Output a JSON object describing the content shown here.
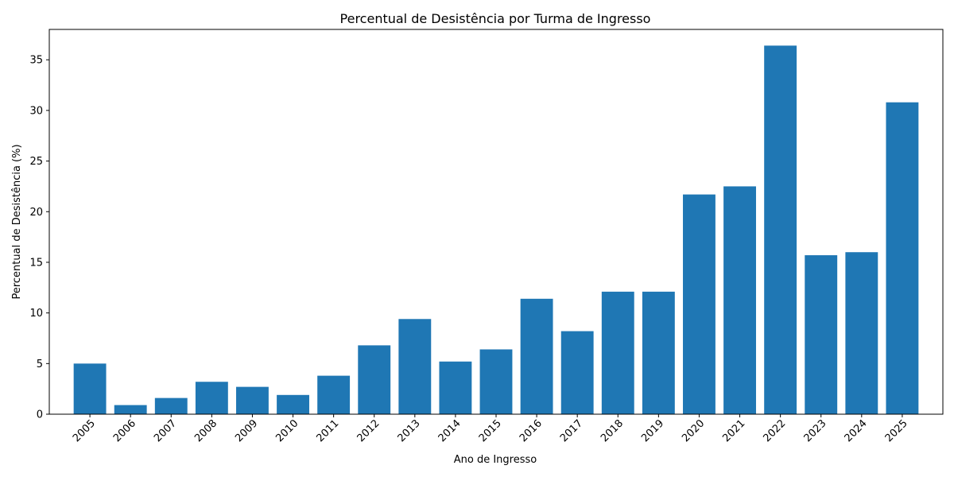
{
  "chart_data": {
    "type": "bar",
    "title": "Percentual de Desistência por Turma de Ingresso",
    "xlabel": "Ano de Ingresso",
    "ylabel": "Percentual de Desistência (%)",
    "categories": [
      "2005",
      "2006",
      "2007",
      "2008",
      "2009",
      "2010",
      "2011",
      "2012",
      "2013",
      "2014",
      "2015",
      "2016",
      "2017",
      "2018",
      "2019",
      "2020",
      "2021",
      "2022",
      "2023",
      "2024",
      "2025"
    ],
    "values": [
      5.0,
      0.9,
      1.6,
      3.2,
      2.7,
      1.9,
      3.8,
      6.8,
      9.4,
      5.2,
      6.4,
      11.4,
      8.2,
      12.1,
      12.1,
      21.7,
      22.5,
      36.4,
      15.7,
      16.0,
      30.8
    ],
    "ylim": [
      0,
      38
    ],
    "yticks": [
      0,
      5,
      10,
      15,
      20,
      25,
      30,
      35
    ],
    "bar_color": "#1f77b4",
    "grid": false,
    "x_tick_rotation_deg": 45
  }
}
